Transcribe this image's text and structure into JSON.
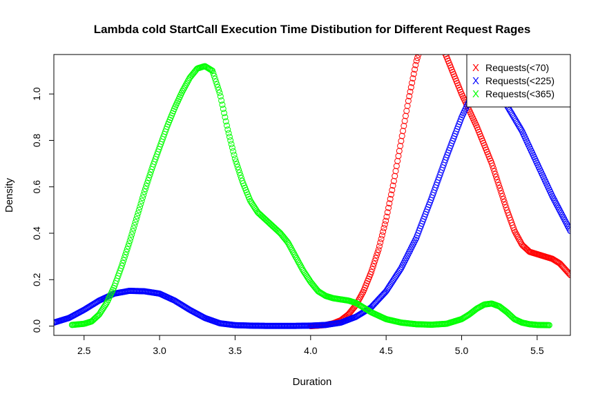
{
  "chart_data": {
    "type": "line",
    "title": "Lambda cold StartCall Execution Time Distibution for Different Request Rages",
    "xlabel": "Duration",
    "ylabel": "Density",
    "xlim": [
      2.3,
      5.72
    ],
    "ylim": [
      -0.04,
      1.17
    ],
    "xticks": [
      2.5,
      3.0,
      3.5,
      4.0,
      4.5,
      5.0,
      5.5
    ],
    "xtick_labels": [
      "2.5",
      "3.0",
      "3.5",
      "4.0",
      "4.5",
      "5.0",
      "5.5"
    ],
    "yticks": [
      0.0,
      0.2,
      0.4,
      0.6,
      0.8,
      1.0
    ],
    "ytick_labels": [
      "0.0",
      "0.2",
      "0.4",
      "0.6",
      "0.8",
      "1.0"
    ],
    "grid": false,
    "legend_position": "top-right",
    "legend_marker": "X",
    "marker": "circle",
    "series": [
      {
        "name": "Requests(<70)",
        "color": "#ff0000",
        "x": [
          4.0,
          4.05,
          4.1,
          4.15,
          4.2,
          4.25,
          4.3,
          4.35,
          4.4,
          4.45,
          4.5,
          4.55,
          4.6,
          4.65,
          4.7,
          4.75,
          4.8,
          4.85,
          4.9,
          4.95,
          5.0,
          5.05,
          5.1,
          5.15,
          5.2,
          5.25,
          5.3,
          5.35,
          5.4,
          5.45,
          5.5,
          5.55,
          5.6,
          5.65,
          5.72
        ],
        "y": [
          0.0,
          0.002,
          0.005,
          0.012,
          0.025,
          0.05,
          0.09,
          0.15,
          0.23,
          0.33,
          0.46,
          0.62,
          0.8,
          0.98,
          1.14,
          1.25,
          1.29,
          1.24,
          1.16,
          1.08,
          1.0,
          0.93,
          0.86,
          0.78,
          0.7,
          0.6,
          0.5,
          0.41,
          0.35,
          0.32,
          0.31,
          0.3,
          0.29,
          0.27,
          0.22
        ]
      },
      {
        "name": "Requests(<225)",
        "color": "#0000ff",
        "x": [
          2.3,
          2.4,
          2.5,
          2.6,
          2.7,
          2.8,
          2.9,
          3.0,
          3.1,
          3.2,
          3.3,
          3.4,
          3.5,
          3.6,
          3.7,
          3.8,
          3.9,
          4.0,
          4.1,
          4.2,
          4.3,
          4.4,
          4.5,
          4.6,
          4.7,
          4.8,
          4.9,
          5.0,
          5.05,
          5.1,
          5.15,
          5.2,
          5.25,
          5.3,
          5.4,
          5.5,
          5.6,
          5.72
        ],
        "y": [
          0.015,
          0.035,
          0.07,
          0.11,
          0.14,
          0.152,
          0.15,
          0.14,
          0.11,
          0.07,
          0.035,
          0.012,
          0.004,
          0.002,
          0.001,
          0.001,
          0.001,
          0.002,
          0.005,
          0.015,
          0.04,
          0.08,
          0.15,
          0.25,
          0.38,
          0.55,
          0.73,
          0.9,
          0.97,
          1.02,
          1.04,
          1.03,
          1.0,
          0.95,
          0.84,
          0.7,
          0.56,
          0.41
        ]
      },
      {
        "name": "Requests(<365)",
        "color": "#00ff00",
        "x": [
          2.42,
          2.5,
          2.55,
          2.6,
          2.65,
          2.7,
          2.75,
          2.8,
          2.85,
          2.9,
          2.95,
          3.0,
          3.05,
          3.1,
          3.15,
          3.2,
          3.25,
          3.3,
          3.35,
          3.4,
          3.45,
          3.5,
          3.55,
          3.6,
          3.65,
          3.7,
          3.75,
          3.8,
          3.85,
          3.9,
          3.95,
          4.0,
          4.05,
          4.1,
          4.15,
          4.2,
          4.25,
          4.3,
          4.35,
          4.4,
          4.45,
          4.5,
          4.6,
          4.7,
          4.8,
          4.9,
          5.0,
          5.05,
          5.1,
          5.15,
          5.2,
          5.25,
          5.3,
          5.35,
          5.4,
          5.45,
          5.5,
          5.58
        ],
        "y": [
          0.005,
          0.01,
          0.02,
          0.05,
          0.1,
          0.17,
          0.26,
          0.36,
          0.47,
          0.58,
          0.68,
          0.77,
          0.86,
          0.94,
          1.01,
          1.07,
          1.11,
          1.12,
          1.1,
          1.0,
          0.85,
          0.72,
          0.62,
          0.54,
          0.49,
          0.46,
          0.43,
          0.4,
          0.36,
          0.3,
          0.24,
          0.19,
          0.15,
          0.13,
          0.12,
          0.115,
          0.11,
          0.1,
          0.08,
          0.06,
          0.045,
          0.03,
          0.015,
          0.008,
          0.006,
          0.01,
          0.03,
          0.05,
          0.075,
          0.093,
          0.097,
          0.085,
          0.06,
          0.03,
          0.015,
          0.008,
          0.005,
          0.004
        ]
      }
    ]
  }
}
